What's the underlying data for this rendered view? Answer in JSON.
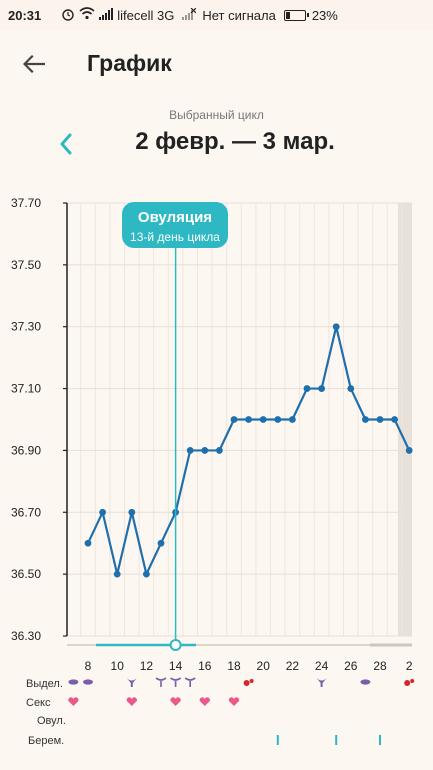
{
  "status_bar": {
    "time": "20:31",
    "carrier": "lifecell 3G",
    "no_signal": "Нет сигнала",
    "battery": "23%",
    "battery_level": 0.23
  },
  "header": {
    "title": "График",
    "back_icon": "arrow-left-icon"
  },
  "cycle": {
    "caption": "Выбранный цикл",
    "range": "2 февр. — 3 мар.",
    "prev_icon": "chevron-left-icon"
  },
  "colors": {
    "accent": "#2eb8c4",
    "line": "#1f6fad",
    "background": "#fdf7f2",
    "discharge": "#7b5ea7",
    "sex": "#e85a8a",
    "blood": "#d9232e"
  },
  "ovulation": {
    "title": "Овуляция",
    "subtitle": "13-й день цикла"
  },
  "row_labels": {
    "discharge": "Выдел.",
    "sex": "Секс",
    "ovulation": "Овул.",
    "pregnancy": "Берем."
  },
  "chart_data": {
    "type": "line",
    "x_ticks": [
      "8",
      "10",
      "12",
      "14",
      "16",
      "18",
      "20",
      "22",
      "24",
      "26",
      "28",
      "2"
    ],
    "y_ticks": [
      "37.70",
      "37.50",
      "37.30",
      "37.10",
      "36.90",
      "36.70",
      "36.50",
      "36.30"
    ],
    "ylim": [
      36.3,
      37.7
    ],
    "grid": true,
    "series": [
      {
        "x": [
          8,
          9,
          10,
          11,
          12,
          13,
          14,
          15,
          16,
          17,
          18,
          19,
          20,
          21,
          22,
          23,
          24,
          25,
          26,
          27,
          28,
          29,
          30
        ],
        "values": [
          36.6,
          36.7,
          36.5,
          36.7,
          36.5,
          36.6,
          36.7,
          36.9,
          36.9,
          36.9,
          37.0,
          37.0,
          37.0,
          37.0,
          37.0,
          37.1,
          37.1,
          37.3,
          37.1,
          37.0,
          37.0,
          37.0,
          36.9
        ]
      }
    ],
    "ovulation_x": 14,
    "markers": {
      "discharge_drop": [
        7,
        8
      ],
      "discharge_cream": [
        11
      ],
      "discharge_egg": [
        13,
        14,
        15
      ],
      "discharge_cream_late": [
        24
      ],
      "discharge_drop_late": [
        27
      ],
      "blood": [
        19,
        30
      ],
      "sex": [
        7,
        11,
        14,
        16,
        18
      ],
      "pregnancy": [
        21,
        25,
        28
      ]
    }
  }
}
